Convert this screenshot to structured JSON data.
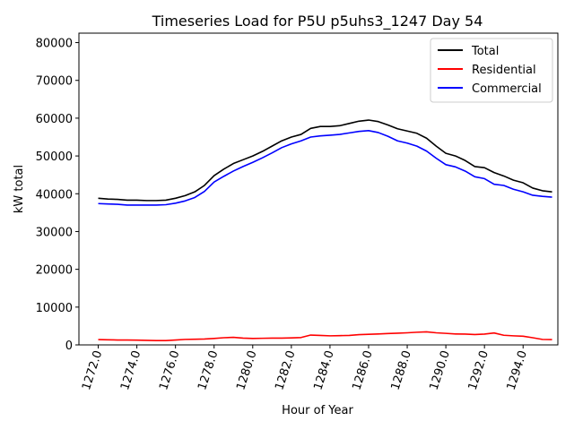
{
  "chart_data": {
    "type": "line",
    "title": "Timeseries Load for P5U p5uhs3_1247  Day 54",
    "xlabel": "Hour of Year",
    "ylabel": "kW total",
    "xlim": [
      1271.0,
      1295.8
    ],
    "ylim": [
      0,
      82500
    ],
    "xticks": [
      1272,
      1274,
      1276,
      1278,
      1280,
      1282,
      1284,
      1286,
      1288,
      1290,
      1292,
      1294
    ],
    "xtick_labels": [
      "1272.0",
      "1274.0",
      "1276.0",
      "1278.0",
      "1280.0",
      "1282.0",
      "1284.0",
      "1286.0",
      "1288.0",
      "1290.0",
      "1292.0",
      "1294.0"
    ],
    "yticks": [
      0,
      10000,
      20000,
      30000,
      40000,
      50000,
      60000,
      70000,
      80000
    ],
    "ytick_labels": [
      "0",
      "10000",
      "20000",
      "30000",
      "40000",
      "50000",
      "60000",
      "70000",
      "80000"
    ],
    "legend_position": "top-right",
    "x": [
      1272,
      1272.5,
      1273,
      1273.5,
      1274,
      1274.5,
      1275,
      1275.5,
      1276,
      1276.5,
      1277,
      1277.5,
      1278,
      1278.5,
      1279,
      1279.5,
      1280,
      1280.5,
      1281,
      1281.5,
      1282,
      1282.5,
      1283,
      1283.5,
      1284,
      1284.5,
      1285,
      1285.5,
      1286,
      1286.5,
      1287,
      1287.5,
      1288,
      1288.5,
      1289,
      1289.5,
      1290,
      1290.5,
      1291,
      1291.5,
      1292,
      1292.5,
      1293,
      1293.5,
      1294,
      1294.5,
      1295,
      1295.5
    ],
    "series": [
      {
        "name": "Total",
        "color": "#000000",
        "values": [
          38800,
          38600,
          38500,
          38300,
          38300,
          38200,
          38200,
          38300,
          38800,
          39500,
          40500,
          42200,
          44800,
          46500,
          48000,
          49000,
          50000,
          51200,
          52600,
          54000,
          55000,
          55700,
          57300,
          57800,
          57800,
          58000,
          58600,
          59200,
          59500,
          59100,
          58200,
          57200,
          56600,
          56000,
          54700,
          52600,
          50700,
          50000,
          48800,
          47200,
          46900,
          45600,
          44700,
          43600,
          42900,
          41500,
          40800,
          40500
        ]
      },
      {
        "name": "Residential",
        "color": "#ff0000",
        "values": [
          1400,
          1350,
          1300,
          1300,
          1250,
          1200,
          1150,
          1150,
          1300,
          1450,
          1500,
          1550,
          1700,
          1900,
          2000,
          1800,
          1700,
          1750,
          1800,
          1800,
          1850,
          1950,
          2600,
          2500,
          2400,
          2450,
          2500,
          2700,
          2800,
          2900,
          3000,
          3100,
          3200,
          3350,
          3450,
          3200,
          3050,
          2900,
          2850,
          2750,
          2850,
          3150,
          2550,
          2400,
          2300,
          1900,
          1450,
          1400
        ]
      },
      {
        "name": "Commercial",
        "color": "#0000ff",
        "values": [
          37400,
          37300,
          37200,
          37000,
          37000,
          37000,
          37000,
          37100,
          37500,
          38100,
          39000,
          40600,
          43100,
          44600,
          46000,
          47200,
          48300,
          49500,
          50800,
          52200,
          53200,
          54000,
          55000,
          55300,
          55500,
          55700,
          56100,
          56500,
          56700,
          56200,
          55200,
          54000,
          53400,
          52600,
          51300,
          49400,
          47700,
          47100,
          46000,
          44500,
          44000,
          42500,
          42200,
          41200,
          40500,
          39600,
          39300,
          39100
        ]
      }
    ]
  }
}
